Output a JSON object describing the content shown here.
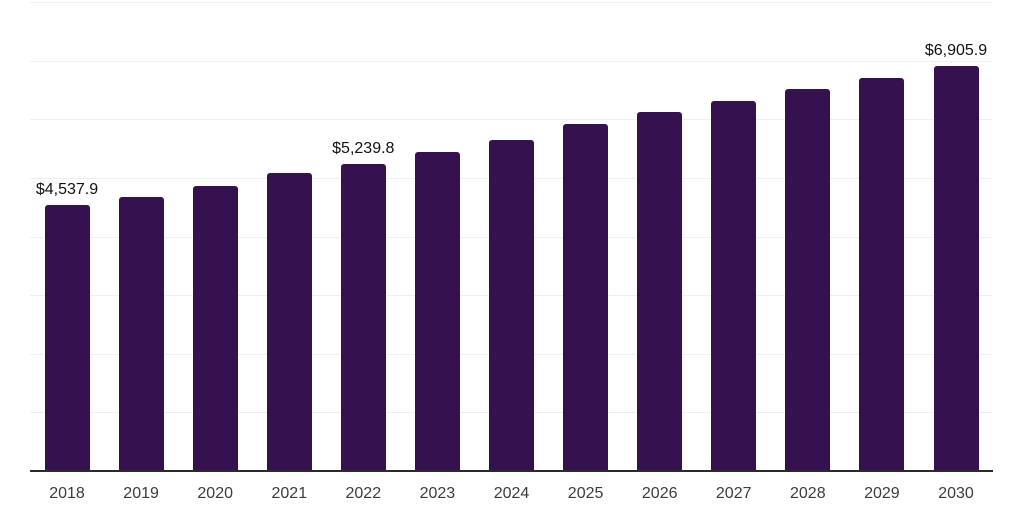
{
  "chart_data": {
    "type": "bar",
    "title": "",
    "xlabel": "",
    "ylabel": "",
    "categories": [
      "2018",
      "2019",
      "2020",
      "2021",
      "2022",
      "2023",
      "2024",
      "2025",
      "2026",
      "2027",
      "2028",
      "2029",
      "2030"
    ],
    "values": [
      4537.9,
      4680,
      4870,
      5080,
      5239.8,
      5450,
      5650,
      5920,
      6120,
      6320,
      6520,
      6710,
      6905.9
    ],
    "labeled_points": [
      {
        "category": "2018",
        "label": "$4,537.9"
      },
      {
        "category": "2022",
        "label": "$5,239.8"
      },
      {
        "category": "2030",
        "label": "$6,905.9"
      }
    ],
    "ylim": [
      0,
      8000
    ],
    "gridline_step": 1000,
    "grid": "horizontal-only",
    "legend": "none",
    "y_axis_tick_labels_visible": false,
    "colors": {
      "bar": "#351150",
      "axis": "#2b2b2b",
      "gridline": "#efefef",
      "value_label": "#111111",
      "tick_label": "#3c3c3c",
      "background": "#ffffff"
    }
  }
}
